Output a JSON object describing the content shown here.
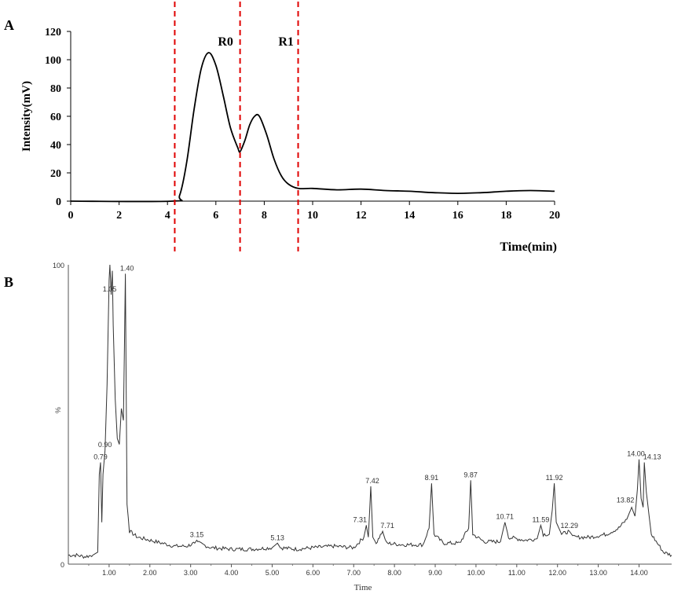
{
  "chart_data": [
    {
      "panel_label": "A",
      "type": "line",
      "xlabel": "Time(min)",
      "ylabel": "Intensity(mV)",
      "xlim": [
        0,
        20
      ],
      "ylim": [
        0,
        120
      ],
      "xticks": [
        0,
        2,
        4,
        6,
        8,
        10,
        12,
        14,
        16,
        18,
        20
      ],
      "yticks": [
        0,
        20,
        40,
        60,
        80,
        100,
        120
      ],
      "grid": false,
      "series": [
        {
          "x": [
            0,
            4.2,
            4.5,
            4.8,
            5.1,
            5.4,
            5.7,
            6.0,
            6.3,
            6.6,
            6.9,
            7.0,
            7.2,
            7.4,
            7.6,
            7.8,
            8.1,
            8.4,
            8.7,
            9.0,
            9.4,
            10,
            11,
            12,
            13,
            14,
            15,
            16,
            17,
            18,
            19,
            20
          ],
          "y": [
            0,
            0,
            4,
            28,
            65,
            94,
            105,
            96,
            75,
            52,
            38,
            35,
            43,
            54,
            60,
            60,
            47,
            30,
            18,
            12,
            9,
            9,
            8,
            8.5,
            7.5,
            7,
            6,
            5.5,
            6,
            7,
            7.5,
            7
          ]
        }
      ],
      "vlines": [
        4.3,
        7.0,
        9.4
      ],
      "region_labels": [
        {
          "text": "R0",
          "x": 6.4,
          "y": 110
        },
        {
          "text": "R1",
          "x": 8.9,
          "y": 110
        }
      ]
    },
    {
      "panel_label": "B",
      "type": "line",
      "xlabel": "Time",
      "ylabel": "%",
      "xlim": [
        0.0,
        14.8
      ],
      "ylim": [
        0,
        100
      ],
      "xticks": [
        "1.00",
        "2.00",
        "3.00",
        "4.00",
        "5.00",
        "6.00",
        "7.00",
        "8.00",
        "9.00",
        "10.00",
        "11.00",
        "12.00",
        "13.00",
        "14.00"
      ],
      "yticks": [
        0,
        100
      ],
      "grid": false,
      "series": [
        {
          "x": [
            0.0,
            0.2,
            0.4,
            0.6,
            0.72,
            0.76,
            0.79,
            0.82,
            0.85,
            0.9,
            0.95,
            1.0,
            1.02,
            1.05,
            1.08,
            1.1,
            1.15,
            1.2,
            1.25,
            1.3,
            1.35,
            1.4,
            1.44,
            1.5,
            1.7,
            2.0,
            2.3,
            2.6,
            2.9,
            3.1,
            3.15,
            3.2,
            3.5,
            4.0,
            4.5,
            5.0,
            5.13,
            5.2,
            5.6,
            6.0,
            6.5,
            7.0,
            7.25,
            7.31,
            7.36,
            7.42,
            7.47,
            7.55,
            7.71,
            7.8,
            8.2,
            8.7,
            8.85,
            8.91,
            8.97,
            9.2,
            9.6,
            9.82,
            9.87,
            9.92,
            10.2,
            10.6,
            10.71,
            10.8,
            11.2,
            11.5,
            11.59,
            11.65,
            11.8,
            11.87,
            11.92,
            11.97,
            12.1,
            12.29,
            12.4,
            12.8,
            13.2,
            13.5,
            13.7,
            13.82,
            13.9,
            13.96,
            14.0,
            14.05,
            14.1,
            14.13,
            14.18,
            14.3,
            14.6,
            14.8
          ],
          "y": [
            3,
            3,
            2.5,
            3,
            4,
            30,
            34,
            14,
            30,
            38,
            60,
            95,
            100,
            90,
            98,
            80,
            55,
            42,
            40,
            52,
            48,
            97,
            20,
            11,
            9,
            8,
            7,
            6,
            6,
            7,
            8,
            7,
            5.5,
            5,
            5,
            5.5,
            7,
            5.5,
            5,
            5.5,
            6,
            5.5,
            9,
            13,
            9,
            26,
            9,
            7,
            11,
            7,
            6.5,
            6.5,
            12,
            27,
            10,
            7,
            7,
            12,
            28,
            10,
            7.5,
            7.5,
            14,
            9,
            8,
            8.5,
            13,
            10,
            10,
            18,
            27,
            14,
            10,
            11,
            9,
            9,
            10,
            12,
            15,
            19,
            16,
            25,
            35,
            22,
            19,
            34,
            24,
            10,
            4,
            3
          ]
        }
      ],
      "peak_labels": [
        "0.79",
        "0.90",
        "1.05",
        "1.40",
        "3.15",
        "5.13",
        "7.31",
        "7.42",
        "7.71",
        "8.91",
        "9.87",
        "10.71",
        "11.59",
        "11.92",
        "12.29",
        "13.82",
        "14.00",
        "14.13"
      ]
    }
  ],
  "colors": {
    "line": "#000000",
    "dashed": "#e00000",
    "axis_b": "#555555"
  }
}
